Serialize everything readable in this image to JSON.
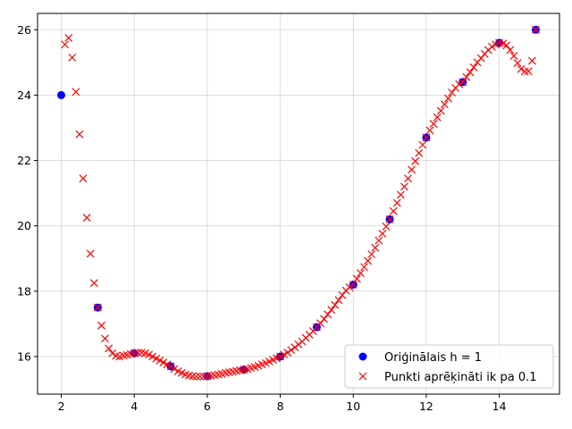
{
  "chart_data": {
    "type": "scatter",
    "xlim": [
      1.35,
      15.65
    ],
    "ylim": [
      14.85,
      26.5
    ],
    "x_ticks": [
      2,
      4,
      6,
      8,
      10,
      12,
      14
    ],
    "y_ticks": [
      16,
      18,
      20,
      22,
      24,
      26
    ],
    "grid": true,
    "legend_position": "bottom-right",
    "series": [
      {
        "name": "Oriģinālais h = 1",
        "marker": "circle",
        "color": "#0000ff",
        "x": [
          2,
          3,
          4,
          5,
          6,
          7,
          8,
          9,
          10,
          11,
          12,
          13,
          14,
          15
        ],
        "y": [
          24.0,
          17.5,
          16.1,
          15.7,
          15.4,
          15.6,
          16.0,
          16.9,
          18.2,
          20.2,
          22.7,
          24.4,
          25.6,
          26.0
        ]
      },
      {
        "name": "Punkti aprēķināti ik pa 0.1",
        "marker": "x",
        "color": "#ff0000",
        "x": [
          2.1,
          2.2,
          2.3,
          2.4,
          2.5,
          2.6,
          2.7,
          2.8,
          2.9,
          3.0,
          3.1,
          3.2,
          3.3,
          3.4,
          3.5,
          3.6,
          3.7,
          3.8,
          3.9,
          4.0,
          4.1,
          4.2,
          4.3,
          4.4,
          4.5,
          4.6,
          4.7,
          4.8,
          4.9,
          5.0,
          5.1,
          5.2,
          5.3,
          5.4,
          5.5,
          5.6,
          5.7,
          5.8,
          5.9,
          6.0,
          6.1,
          6.2,
          6.3,
          6.4,
          6.5,
          6.6,
          6.7,
          6.8,
          6.9,
          7.0,
          7.1,
          7.2,
          7.3,
          7.4,
          7.5,
          7.6,
          7.7,
          7.8,
          7.9,
          8.0,
          8.1,
          8.2,
          8.3,
          8.4,
          8.5,
          8.6,
          8.7,
          8.8,
          8.9,
          9.0,
          9.1,
          9.2,
          9.3,
          9.4,
          9.5,
          9.6,
          9.7,
          9.8,
          9.9,
          10.0,
          10.1,
          10.2,
          10.3,
          10.4,
          10.5,
          10.6,
          10.7,
          10.8,
          10.9,
          11.0,
          11.1,
          11.2,
          11.3,
          11.4,
          11.5,
          11.6,
          11.7,
          11.8,
          11.9,
          12.0,
          12.1,
          12.2,
          12.3,
          12.4,
          12.5,
          12.6,
          12.7,
          12.8,
          12.9,
          13.0,
          13.1,
          13.2,
          13.3,
          13.4,
          13.5,
          13.6,
          13.7,
          13.8,
          13.9,
          14.0,
          14.1,
          14.2,
          14.3,
          14.4,
          14.5,
          14.6,
          14.7,
          14.8,
          14.9,
          15.0
        ],
        "y": [
          25.55,
          25.75,
          25.15,
          24.1,
          22.8,
          21.45,
          20.25,
          19.15,
          18.25,
          17.5,
          16.95,
          16.55,
          16.25,
          16.1,
          16.02,
          16.0,
          16.03,
          16.05,
          16.08,
          16.1,
          16.12,
          16.12,
          16.1,
          16.06,
          16.0,
          15.94,
          15.88,
          15.82,
          15.76,
          15.7,
          15.62,
          15.55,
          15.5,
          15.45,
          15.42,
          15.4,
          15.39,
          15.39,
          15.39,
          15.4,
          15.41,
          15.43,
          15.45,
          15.47,
          15.5,
          15.52,
          15.54,
          15.56,
          15.58,
          15.6,
          15.62,
          15.65,
          15.68,
          15.72,
          15.76,
          15.8,
          15.85,
          15.9,
          15.95,
          16.0,
          16.06,
          16.12,
          16.2,
          16.28,
          16.37,
          16.46,
          16.57,
          16.67,
          16.78,
          16.9,
          17.02,
          17.15,
          17.29,
          17.43,
          17.58,
          17.73,
          17.88,
          18.02,
          18.12,
          18.2,
          18.38,
          18.55,
          18.74,
          18.93,
          19.13,
          19.33,
          19.55,
          19.76,
          19.98,
          20.2,
          20.45,
          20.7,
          20.95,
          21.2,
          21.45,
          21.72,
          21.98,
          22.23,
          22.48,
          22.7,
          22.92,
          23.12,
          23.32,
          23.52,
          23.72,
          23.9,
          24.08,
          24.22,
          24.33,
          24.4,
          24.55,
          24.7,
          24.85,
          25.0,
          25.13,
          25.26,
          25.38,
          25.48,
          25.55,
          25.6,
          25.58,
          25.52,
          25.38,
          25.2,
          24.98,
          24.8,
          24.72,
          24.73,
          25.05,
          26.0
        ]
      }
    ]
  }
}
